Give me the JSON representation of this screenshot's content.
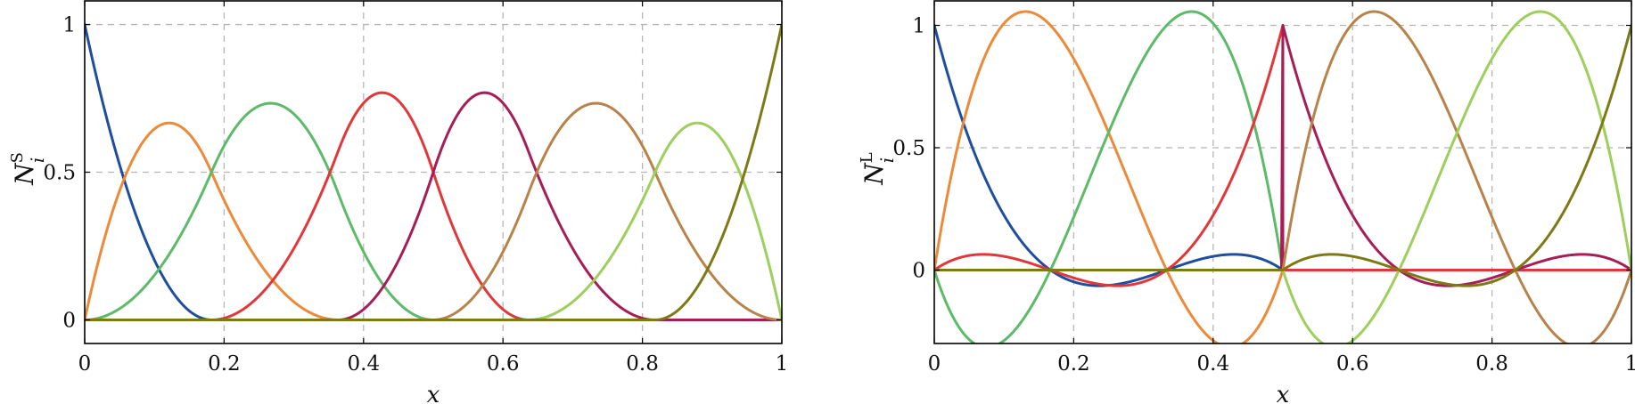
{
  "chart_data": [
    {
      "type": "line",
      "title": "",
      "xlabel": "x",
      "ylabel_main": "N",
      "ylabel_sub": "i",
      "ylabel_sup": "S",
      "xlim": [
        0,
        1
      ],
      "ylim": [
        -0.08,
        1.08
      ],
      "xticks": [
        0,
        0.2,
        0.4,
        0.6,
        0.8,
        1
      ],
      "xtick_labels": [
        "0",
        "0.2",
        "0.4",
        "0.6",
        "0.8",
        "1"
      ],
      "yticks": [
        0,
        0.5,
        1
      ],
      "ytick_labels": [
        "0",
        "0.5",
        "1"
      ],
      "grid": true,
      "basis": "quadratic-bspline",
      "knots": [
        0,
        0,
        0,
        0.1818,
        0.3636,
        0.5,
        0.6364,
        0.8182,
        1,
        1,
        1
      ],
      "series": [
        {
          "color": "#1f4e9e"
        },
        {
          "color": "#ec8a3a"
        },
        {
          "color": "#5cba68"
        },
        {
          "color": "#e0383a"
        },
        {
          "color": "#a61e55"
        },
        {
          "color": "#b8834a"
        },
        {
          "color": "#9ccf5c"
        },
        {
          "color": "#7d7a16"
        }
      ]
    },
    {
      "type": "line",
      "title": "",
      "xlabel": "x",
      "ylabel_main": "N",
      "ylabel_sub": "i",
      "ylabel_sup": "L",
      "xlim": [
        0,
        1
      ],
      "ylim": [
        -0.3,
        1.1
      ],
      "xticks": [
        0,
        0.2,
        0.4,
        0.6,
        0.8,
        1
      ],
      "xtick_labels": [
        "0",
        "0.2",
        "0.4",
        "0.6",
        "0.8",
        "1"
      ],
      "yticks": [
        0,
        0.5,
        1
      ],
      "ytick_labels": [
        "0",
        "0.5",
        "1"
      ],
      "grid": true,
      "basis": "cubic-lagrange-two-elements",
      "elements": [
        [
          0,
          0.5
        ],
        [
          0.5,
          1
        ]
      ],
      "series": [
        {
          "color": "#1f4e9e",
          "element": 0,
          "node": 0
        },
        {
          "color": "#ec8a3a",
          "element": 0,
          "node": 1
        },
        {
          "color": "#5cba68",
          "element": 0,
          "node": 2
        },
        {
          "color": "#e0383a",
          "element": 0,
          "node": 3
        },
        {
          "color": "#a61e55",
          "element": 1,
          "node": 0
        },
        {
          "color": "#b8834a",
          "element": 1,
          "node": 1
        },
        {
          "color": "#9ccf5c",
          "element": 1,
          "node": 2
        },
        {
          "color": "#7d7a16",
          "element": 1,
          "node": 3
        }
      ]
    }
  ]
}
